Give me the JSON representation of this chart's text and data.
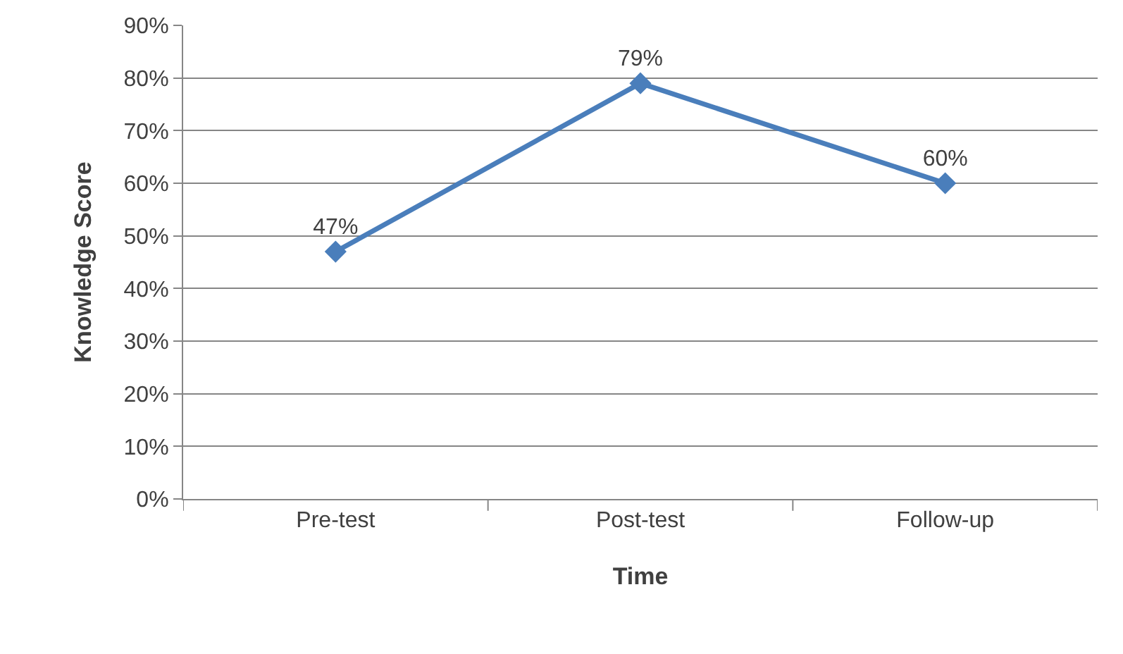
{
  "chart_data": {
    "type": "line",
    "xlabel": "Time",
    "ylabel": "Knowledge Score",
    "categories": [
      "Pre-test",
      "Post-test",
      "Follow-up"
    ],
    "series": [
      {
        "color": "#4a7ebb",
        "values": [
          47,
          79,
          60
        ],
        "value_labels": [
          "47%",
          "79%",
          "60%"
        ]
      }
    ],
    "ylim": [
      0,
      90
    ],
    "yticks": [
      {
        "value": 0,
        "label": "0%"
      },
      {
        "value": 10,
        "label": "10%"
      },
      {
        "value": 20,
        "label": "20%"
      },
      {
        "value": 30,
        "label": "30%"
      },
      {
        "value": 40,
        "label": "40%"
      },
      {
        "value": 50,
        "label": "50%"
      },
      {
        "value": 60,
        "label": "60%"
      },
      {
        "value": 70,
        "label": "70%"
      },
      {
        "value": 80,
        "label": "80%"
      },
      {
        "value": 90,
        "label": "90%"
      }
    ],
    "grid": "y",
    "marker": "diamond",
    "line_style": "solid"
  }
}
